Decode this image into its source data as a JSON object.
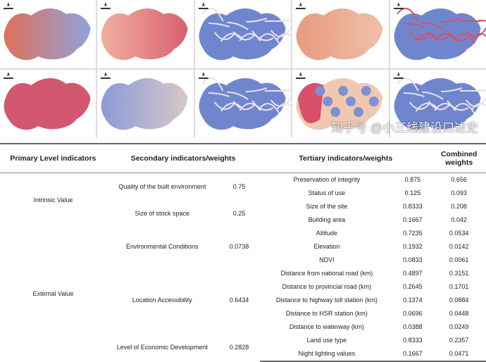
{
  "maps": [
    {
      "base": "#8fa3d8",
      "accent": "#e0705a",
      "pattern": "gradient"
    },
    {
      "base": "#d9606f",
      "accent": "#f0b0a0",
      "pattern": "gradient"
    },
    {
      "base": "#6f86cf",
      "accent": "#e8e0e8",
      "pattern": "network"
    },
    {
      "base": "#efc0a8",
      "accent": "#e89a80",
      "pattern": "gradient"
    },
    {
      "base": "#6f86cf",
      "accent": "#d8506a",
      "pattern": "network"
    },
    {
      "base": "#d2576e",
      "accent": "#d2576e",
      "pattern": "flat"
    },
    {
      "base": "#d8c8c8",
      "accent": "#8a9ad8",
      "pattern": "gradient"
    },
    {
      "base": "#6f86cf",
      "accent": "#e8e0e8",
      "pattern": "network"
    },
    {
      "base": "#f0c8b0",
      "accent": "#d8506a",
      "pattern": "circles"
    },
    {
      "base": "#6f86cf",
      "accent": "#e8e0e8",
      "pattern": "network"
    }
  ],
  "table": {
    "headers": [
      "Primary Level indicators",
      "Secondary indicators/weights",
      "Tertiary indicators/weights",
      "Combined weights"
    ],
    "primary": [
      "Intrinsic Value",
      "External Value"
    ],
    "secondary": [
      {
        "name": "Quality of the built environment",
        "weight": "0.75"
      },
      {
        "name": "Size of stock space",
        "weight": "0.25"
      },
      {
        "name": "Environmental Conditions",
        "weight": "0.0738"
      },
      {
        "name": "Location Accessibility",
        "weight": "0.6434"
      },
      {
        "name": "Level of Economic Development",
        "weight": "0.2828"
      }
    ],
    "rows": [
      {
        "name": "Preservation of integrity",
        "weight": "0.875",
        "combined": "0.656"
      },
      {
        "name": "Status of use",
        "weight": "0.125",
        "combined": "0.093"
      },
      {
        "name": "Size of the site",
        "weight": "0.8333",
        "combined": "0.208"
      },
      {
        "name": "Building area",
        "weight": "0.1667",
        "combined": "0.042"
      },
      {
        "name": "Altitude",
        "weight": "0.7235",
        "combined": "0.0534"
      },
      {
        "name": "Elevation",
        "weight": "0.1932",
        "combined": "0.0142"
      },
      {
        "name": "NDVI",
        "weight": "0.0833",
        "combined": "0.0061"
      },
      {
        "name": "Distance from national road (km)",
        "weight": "0.4897",
        "combined": "0.3151"
      },
      {
        "name": "Distance to provincial road (km)",
        "weight": "0.2645",
        "combined": "0.1701"
      },
      {
        "name": "Distance to highway toll station (km)",
        "weight": "0.1374",
        "combined": "0.0884"
      },
      {
        "name": "Distance to HSR station (km)",
        "weight": "0.0696",
        "combined": "0.0448"
      },
      {
        "name": "Distance to waterway (km)",
        "weight": "0.0388",
        "combined": "0.0249"
      },
      {
        "name": "Land use type",
        "weight": "0.8333",
        "combined": "0.2357"
      },
      {
        "name": "Night lighting values",
        "weight": "0.1667",
        "combined": "0.0471"
      }
    ]
  },
  "watermark": "知乎号 @小三线建设口述史"
}
